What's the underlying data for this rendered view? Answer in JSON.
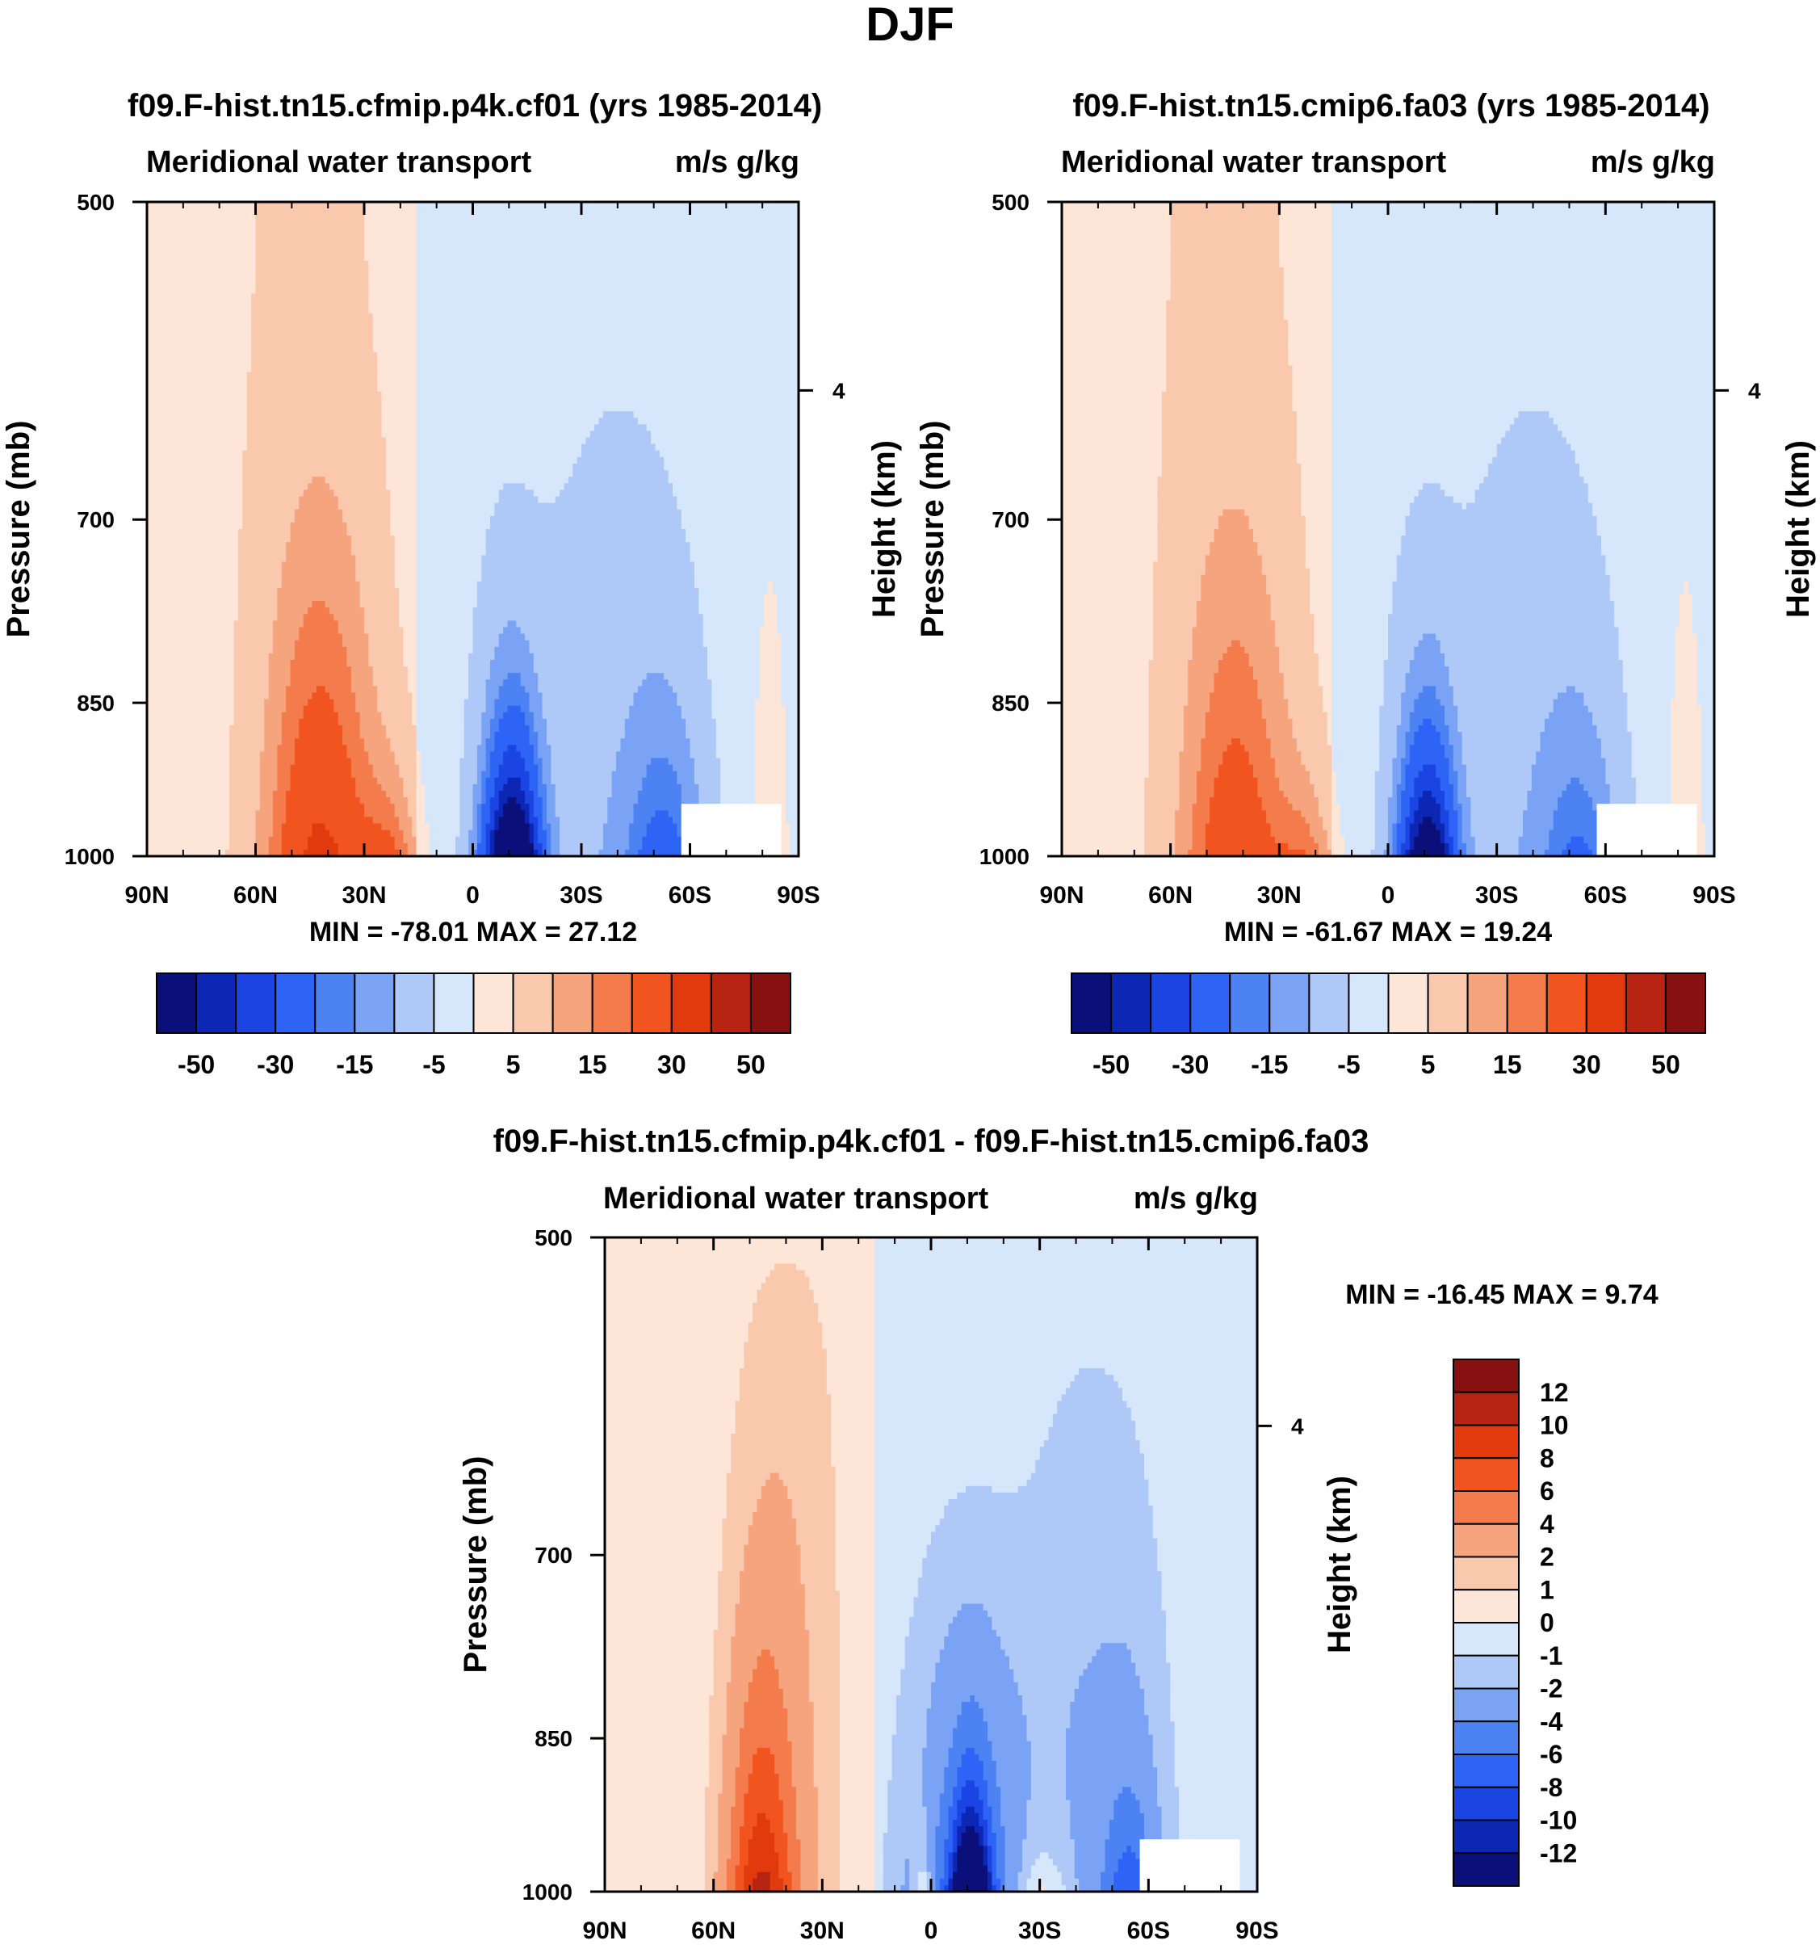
{
  "figure_title": "DJF",
  "chart_data": [
    {
      "type": "heatmap",
      "title": "f09.F-hist.tn15.cfmip.p4k.cf01 (yrs 1985-2014)",
      "subtitle_left": "Meridional water transport",
      "subtitle_right": "m/s g/kg",
      "ylabel": "Pressure (mb)",
      "ylabel_right": "Height (km)",
      "x_ticks": [
        "90N",
        "60N",
        "30N",
        "0",
        "30S",
        "60S",
        "90S"
      ],
      "y_ticks": [
        "500",
        "700",
        "850",
        "1000"
      ],
      "y_ticks_right": [
        "4"
      ],
      "stats": "MIN = -78.01  MAX =  27.12",
      "xlim": [
        90,
        -90
      ],
      "ylim": [
        500,
        1000
      ],
      "features": [
        {
          "lat": -11,
          "p": 990,
          "v": -78
        },
        {
          "lat": -12,
          "p": 950,
          "v": -50
        },
        {
          "lat": 43,
          "p": 985,
          "v": 22
        },
        {
          "lat": 23,
          "p": 985,
          "v": 12
        },
        {
          "lat": -55,
          "p": 985,
          "v": -20
        }
      ]
    },
    {
      "type": "heatmap",
      "title": "f09.F-hist.tn15.cmip6.fa03 (yrs 1985-2014)",
      "subtitle_left": "Meridional water transport",
      "subtitle_right": "m/s g/kg",
      "ylabel": "Pressure (mb)",
      "ylabel_right": "Height (km)",
      "x_ticks": [
        "90N",
        "60N",
        "30N",
        "0",
        "30S",
        "60S",
        "90S"
      ],
      "y_ticks": [
        "500",
        "700",
        "850",
        "1000"
      ],
      "y_ticks_right": [
        "4"
      ],
      "stats": "MIN = -61.67  MAX =  19.24",
      "xlim": [
        90,
        -90
      ],
      "ylim": [
        500,
        1000
      ],
      "features": [
        {
          "lat": -11,
          "p": 990,
          "v": -61
        },
        {
          "lat": 43,
          "p": 985,
          "v": 19
        },
        {
          "lat": 23,
          "p": 985,
          "v": 10
        },
        {
          "lat": -55,
          "p": 985,
          "v": -18
        }
      ]
    },
    {
      "type": "heatmap",
      "title": "f09.F-hist.tn15.cfmip.p4k.cf01 - f09.F-hist.tn15.cmip6.fa03",
      "subtitle_left": "Meridional water transport",
      "subtitle_right": "m/s g/kg",
      "ylabel": "Pressure (mb)",
      "ylabel_right": "Height (km)",
      "x_ticks": [
        "90N",
        "60N",
        "30N",
        "0",
        "30S",
        "60S",
        "90S"
      ],
      "y_ticks": [
        "500",
        "700",
        "850",
        "1000"
      ],
      "y_ticks_right": [
        "4"
      ],
      "stats": "MIN = -16.45  MAX =   9.74",
      "xlim": [
        90,
        -90
      ],
      "ylim": [
        500,
        1000
      ],
      "features": [
        {
          "lat": -11,
          "p": 990,
          "v": -16
        },
        {
          "lat": 47,
          "p": 985,
          "v": 9
        },
        {
          "lat": 30,
          "p": 985,
          "v": 3
        },
        {
          "lat": -55,
          "p": 980,
          "v": -6
        }
      ]
    }
  ],
  "colorbars": {
    "abs": {
      "labels": [
        "-50",
        "-30",
        "-15",
        "-5",
        "5",
        "15",
        "30",
        "50"
      ],
      "levels": [
        -60,
        -50,
        -40,
        -30,
        -20,
        -15,
        -10,
        -5,
        0,
        5,
        10,
        15,
        20,
        30,
        40,
        50,
        60
      ],
      "colors": [
        "#0a0f7a",
        "#0c27b3",
        "#1a45e3",
        "#2d64f5",
        "#4d82f3",
        "#7aa3f5",
        "#aec9f8",
        "#d6e7fb",
        "#fde6d7",
        "#f9c8ad",
        "#f6a47e",
        "#f47c4c",
        "#f2541f",
        "#e03a0d",
        "#b72411",
        "#871010"
      ]
    },
    "diff": {
      "labels": [
        "12",
        "10",
        "8",
        "6",
        "4",
        "2",
        "1",
        "0",
        "-1",
        "-2",
        "-4",
        "-6",
        "-8",
        "-10",
        "-12"
      ],
      "colors": [
        "#871010",
        "#b72411",
        "#e03a0d",
        "#f2541f",
        "#f47c4c",
        "#f6a47e",
        "#f9c8ad",
        "#fde6d7",
        "#d6e7fb",
        "#aec9f8",
        "#7aa3f5",
        "#4d82f3",
        "#2d64f5",
        "#1a45e3",
        "#0c27b3",
        "#0a0f7a"
      ]
    }
  }
}
